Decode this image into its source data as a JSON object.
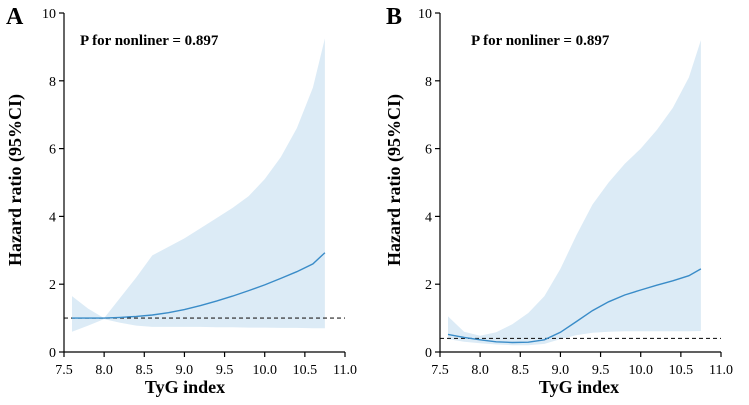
{
  "colors": {
    "ci_band": "#dcebf6",
    "curve": "#3a8cc8",
    "reference_line": "#222222",
    "axis": "#000000"
  },
  "chart_data": [
    {
      "panel": "A",
      "type": "line",
      "annotation": "P for nonliner = 0.897",
      "xlabel": "TyG index",
      "ylabel": "Hazard ratio (95%CI)",
      "xlim": [
        7.5,
        11.0
      ],
      "ylim": [
        0,
        10
      ],
      "x_ticks": [
        7.5,
        8.0,
        8.5,
        9.0,
        9.5,
        10.0,
        10.5,
        11.0
      ],
      "x_tick_labels": [
        "7.5",
        "8.0",
        "8.5",
        "9.0",
        "9.5",
        "10.0",
        "10.5",
        "11.0"
      ],
      "y_ticks": [
        0,
        2,
        4,
        6,
        8,
        10
      ],
      "y_tick_labels": [
        "0",
        "2",
        "4",
        "6",
        "8",
        "10"
      ],
      "reference_line": 1.0,
      "series": [
        {
          "x": [
            7.6,
            7.8,
            8.0,
            8.2,
            8.4,
            8.6,
            8.8,
            9.0,
            9.2,
            9.4,
            9.6,
            9.8,
            10.0,
            10.2,
            10.4,
            10.6,
            10.75
          ],
          "hr": [
            1.0,
            1.0,
            1.0,
            1.02,
            1.05,
            1.09,
            1.16,
            1.25,
            1.37,
            1.5,
            1.65,
            1.81,
            1.98,
            2.17,
            2.37,
            2.6,
            2.93
          ],
          "lower": [
            0.6,
            0.78,
            0.97,
            0.86,
            0.78,
            0.74,
            0.74,
            0.74,
            0.74,
            0.73,
            0.73,
            0.72,
            0.72,
            0.71,
            0.71,
            0.7,
            0.7
          ],
          "upper": [
            1.65,
            1.28,
            1.0,
            1.6,
            2.2,
            2.85,
            3.1,
            3.35,
            3.65,
            3.95,
            4.25,
            4.6,
            5.1,
            5.75,
            6.6,
            7.8,
            9.25
          ]
        }
      ]
    },
    {
      "panel": "B",
      "type": "line",
      "annotation": "P for nonliner = 0.897",
      "xlabel": "TyG index",
      "ylabel": "Hazard ratio (95%CI)",
      "xlim": [
        7.5,
        11.0
      ],
      "ylim": [
        0,
        10
      ],
      "x_ticks": [
        7.5,
        8.0,
        8.5,
        9.0,
        9.5,
        10.0,
        10.5,
        11.0
      ],
      "x_tick_labels": [
        "7.5",
        "8.0",
        "8.5",
        "9.0",
        "9.5",
        "10.0",
        "10.5",
        "11.0"
      ],
      "y_ticks": [
        0,
        2,
        4,
        6,
        8,
        10
      ],
      "y_tick_labels": [
        "0",
        "2",
        "4",
        "6",
        "8",
        "10"
      ],
      "reference_line": 0.4,
      "series": [
        {
          "x": [
            7.6,
            7.8,
            8.0,
            8.2,
            8.4,
            8.6,
            8.8,
            9.0,
            9.2,
            9.4,
            9.6,
            9.8,
            10.0,
            10.2,
            10.4,
            10.6,
            10.75
          ],
          "hr": [
            0.52,
            0.43,
            0.36,
            0.3,
            0.28,
            0.29,
            0.36,
            0.58,
            0.9,
            1.22,
            1.48,
            1.68,
            1.83,
            1.97,
            2.1,
            2.25,
            2.45
          ],
          "lower": [
            0.38,
            0.3,
            0.26,
            0.22,
            0.2,
            0.2,
            0.24,
            0.38,
            0.5,
            0.57,
            0.6,
            0.61,
            0.61,
            0.61,
            0.61,
            0.61,
            0.62
          ],
          "upper": [
            1.05,
            0.6,
            0.48,
            0.58,
            0.82,
            1.15,
            1.65,
            2.45,
            3.45,
            4.35,
            5.0,
            5.55,
            6.0,
            6.55,
            7.2,
            8.1,
            9.2
          ]
        }
      ]
    }
  ]
}
